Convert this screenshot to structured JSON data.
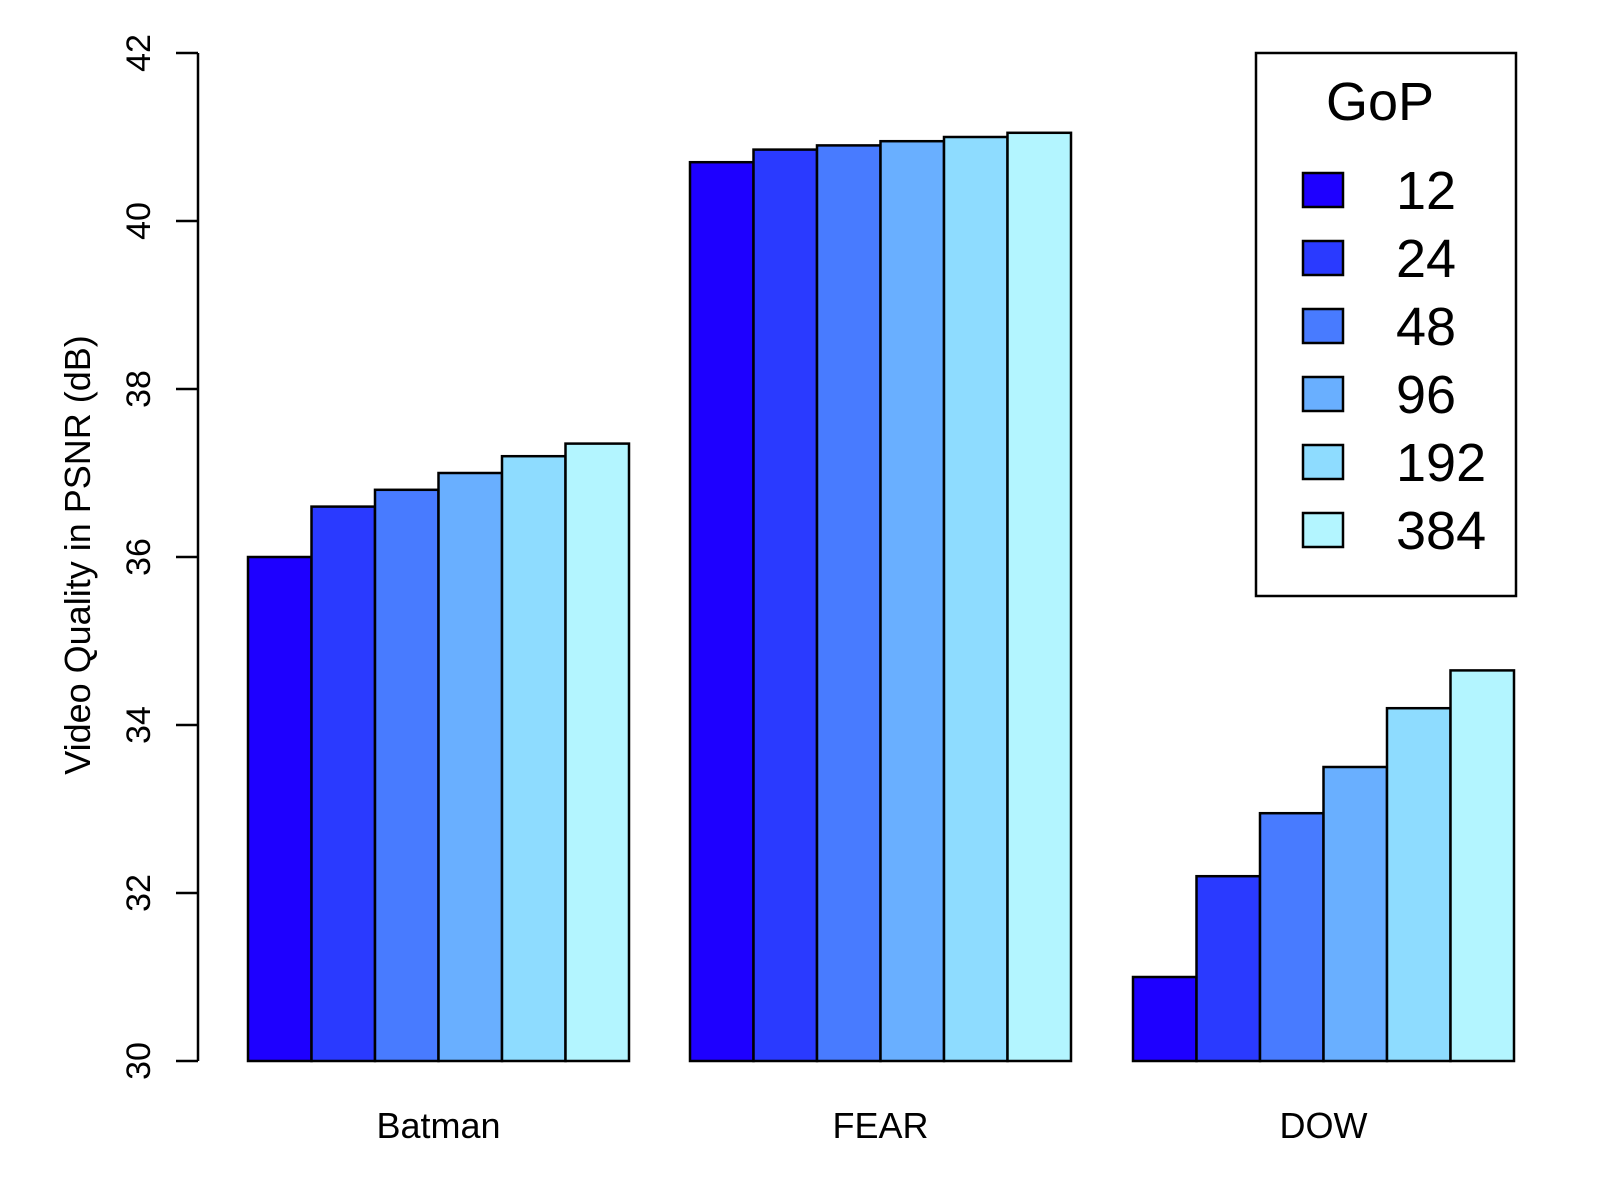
{
  "chart_data": {
    "type": "bar",
    "categories": [
      "Batman",
      "FEAR",
      "DOW"
    ],
    "ylabel": "Video Quality in PSNR (dB)",
    "ylim": [
      30,
      42
    ],
    "yticks": [
      30,
      32,
      34,
      36,
      38,
      40,
      42
    ],
    "grid": false,
    "legend": {
      "title": "GoP",
      "placement": "top-right"
    },
    "series": [
      {
        "name": "12",
        "color": "#1E00FF",
        "values": [
          36.0,
          40.7,
          31.0
        ]
      },
      {
        "name": "24",
        "color": "#2A3AFF",
        "values": [
          36.6,
          40.85,
          32.2
        ]
      },
      {
        "name": "48",
        "color": "#487BFF",
        "values": [
          36.8,
          40.9,
          32.95
        ]
      },
      {
        "name": "96",
        "color": "#69AFFF",
        "values": [
          37.0,
          40.95,
          33.5
        ]
      },
      {
        "name": "192",
        "color": "#8EDCFF",
        "values": [
          37.2,
          41.0,
          34.2
        ]
      },
      {
        "name": "384",
        "color": "#B3F5FF",
        "values": [
          37.35,
          41.05,
          34.65
        ]
      }
    ]
  }
}
